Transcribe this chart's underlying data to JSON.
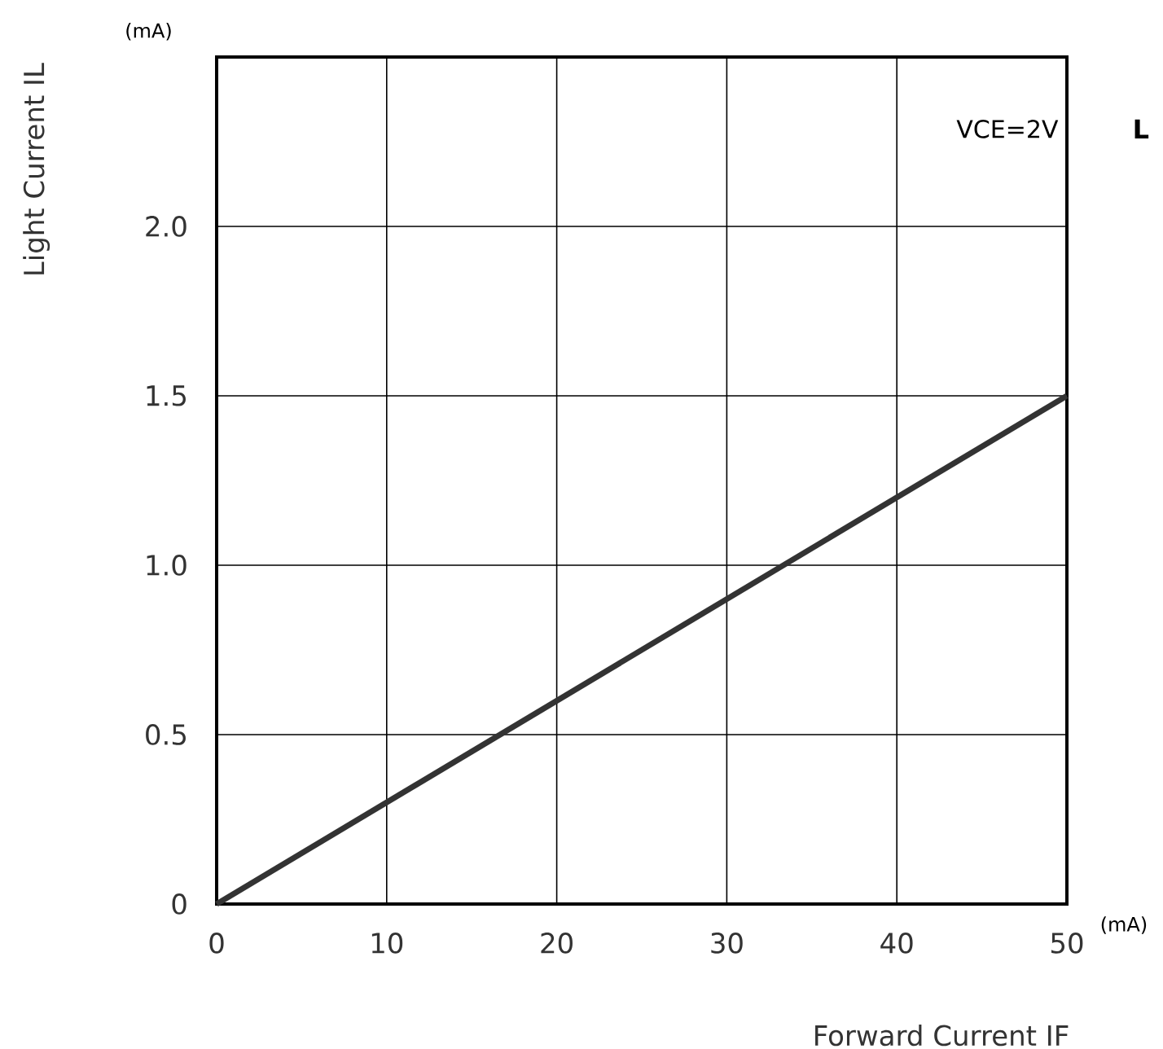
{
  "chart_data": {
    "type": "line",
    "xlabel": "Forward Current  IF",
    "ylabel": "Light Current  IL",
    "x": [
      0,
      50
    ],
    "series": [
      {
        "color": "#333333",
        "values": [
          0,
          1.5
        ]
      }
    ],
    "xlim": [
      0,
      50
    ],
    "ylim": [
      0,
      2.5
    ],
    "xticks": [
      0,
      10,
      20,
      30,
      40,
      50
    ],
    "yticks": [
      0,
      0.5,
      {
        "value": 1.0,
        "label": "1.0"
      },
      1.5,
      {
        "value": 2.0,
        "label": "2.0"
      }
    ],
    "grid": true,
    "marker": "none",
    "line_style": "solid",
    "annotations": [
      "VCE=2V",
      "(mA)",
      "(mA)",
      "L"
    ]
  }
}
